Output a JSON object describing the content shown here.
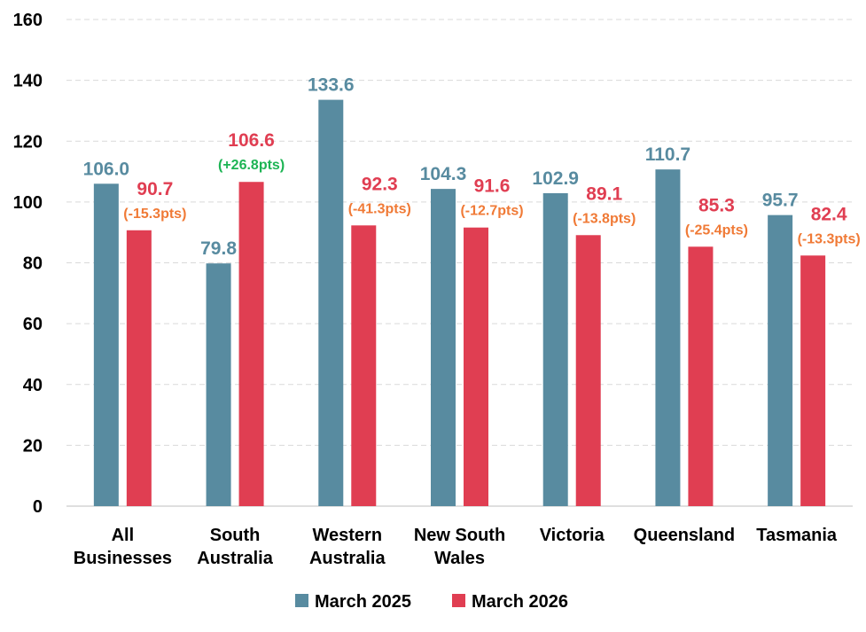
{
  "chart_data": {
    "type": "bar",
    "title": "",
    "xlabel": "",
    "ylabel": "",
    "ylim": [
      0,
      160
    ],
    "yticks": [
      0,
      20,
      40,
      60,
      80,
      100,
      120,
      140,
      160
    ],
    "grid": true,
    "legend_position": "bottom",
    "categories": [
      [
        "All",
        "Businesses"
      ],
      [
        "South",
        "Australia"
      ],
      [
        "Western",
        "Australia"
      ],
      [
        "New South",
        "Wales"
      ],
      [
        "Victoria"
      ],
      [
        "Queensland"
      ],
      [
        "Tasmania"
      ]
    ],
    "series": [
      {
        "name": "March 2025",
        "color": "#588BA0",
        "values": [
          106.0,
          79.8,
          133.6,
          104.3,
          102.9,
          110.7,
          95.7
        ],
        "labels": [
          "106.0",
          "79.8",
          "133.6",
          "104.3",
          "102.9",
          "110.7",
          "95.7"
        ]
      },
      {
        "name": "March 2026",
        "color": "#E03E52",
        "values": [
          90.7,
          106.6,
          92.3,
          91.6,
          89.1,
          85.3,
          82.4
        ],
        "labels": [
          "90.7",
          "106.6",
          "92.3",
          "91.6",
          "89.1",
          "85.3",
          "82.4"
        ]
      }
    ],
    "change_labels": [
      "(-15.3pts)",
      "(+26.8pts)",
      "(-41.3pts)",
      "(-12.7pts)",
      "(-13.8pts)",
      "(-25.4pts)",
      "(-13.3pts)"
    ],
    "change_colors": {
      "negative": "#F07A36",
      "positive": "#1DB454"
    }
  }
}
